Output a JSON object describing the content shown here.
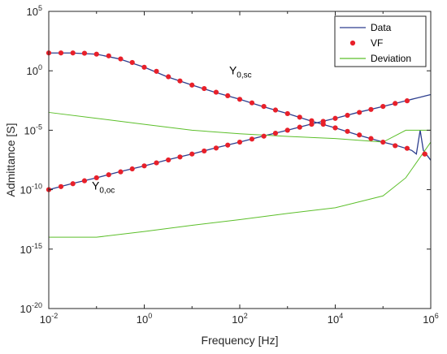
{
  "chart_data": {
    "type": "line",
    "xlabel": "Frequency [Hz]",
    "ylabel": "Admittance [S]",
    "x_scale": "log",
    "y_scale": "log",
    "xlim": [
      0.01,
      1000000
    ],
    "ylim": [
      1e-20,
      100000
    ],
    "grid": false,
    "legend_position": "top-right",
    "x_ticks": [
      {
        "base": "10",
        "exp": "-2"
      },
      {
        "base": "10",
        "exp": "0"
      },
      {
        "base": "10",
        "exp": "2"
      },
      {
        "base": "10",
        "exp": "4"
      },
      {
        "base": "10",
        "exp": "6"
      }
    ],
    "y_ticks": [
      {
        "base": "10",
        "exp": "5"
      },
      {
        "base": "10",
        "exp": "0"
      },
      {
        "base": "10",
        "exp": "-5"
      },
      {
        "base": "10",
        "exp": "-10"
      },
      {
        "base": "10",
        "exp": "-15"
      },
      {
        "base": "10",
        "exp": "-20"
      }
    ],
    "annotations": [
      {
        "main": "Y",
        "sub": "0,sc",
        "x": 60,
        "y": 0.5
      },
      {
        "main": "Y",
        "sub": "0,oc",
        "x": 0.08,
        "y": 1e-10
      }
    ],
    "legend": [
      {
        "label": "Data",
        "marker": "line",
        "color": "#2e3f8f"
      },
      {
        "label": "VF",
        "marker": "dot",
        "color": "#e8202a"
      },
      {
        "label": "Deviation",
        "marker": "line",
        "color": "#5cbf2a"
      }
    ],
    "series": [
      {
        "name": "Y0,sc",
        "role": "data_curve",
        "color": "#2e3f8f",
        "x": [
          0.01,
          0.03,
          0.1,
          0.3,
          1,
          3,
          10,
          30,
          100,
          300,
          1000,
          3000,
          10000,
          30000,
          100000,
          200000,
          300000,
          400000,
          500000,
          600000,
          700000,
          800000,
          1000000
        ],
        "y": [
          31.6,
          31.6,
          25.1,
          10,
          2.0,
          0.316,
          0.0631,
          0.0158,
          0.004,
          0.001,
          0.00025,
          6.31e-05,
          1.58e-05,
          4e-06,
          1e-06,
          5e-07,
          3e-07,
          2e-07,
          1e-07,
          1e-05,
          2e-07,
          1e-07,
          3e-08
        ]
      },
      {
        "name": "Y0,oc",
        "role": "data_curve",
        "color": "#2e3f8f",
        "x": [
          0.01,
          0.03,
          0.1,
          0.3,
          1,
          3,
          10,
          30,
          100,
          300,
          1000,
          3000,
          10000,
          30000,
          100000,
          200000,
          300000,
          400000,
          500000,
          600000,
          700000,
          800000,
          1000000
        ],
        "y": [
          1e-10,
          3.16e-10,
          1e-09,
          3.16e-09,
          1e-08,
          3.16e-08,
          1e-07,
          3.16e-07,
          1e-06,
          3.16e-06,
          1e-05,
          3.16e-05,
          0.0001,
          0.000316,
          0.001,
          0.002,
          0.003,
          0.004,
          0.005,
          0.006,
          0.007,
          0.008,
          0.01
        ]
      },
      {
        "name": "VF",
        "role": "points",
        "color": "#e8202a",
        "x": [
          0.01,
          0.018,
          0.032,
          0.056,
          0.1,
          0.18,
          0.32,
          0.56,
          1,
          1.8,
          3.2,
          5.6,
          10,
          18,
          32,
          56,
          100,
          180,
          320,
          560,
          1000,
          1800,
          3200,
          5600,
          10000,
          18000,
          32000,
          56000,
          100000,
          180000,
          320000,
          750000
        ],
        "y_sc": [
          31.6,
          31.6,
          31.6,
          30,
          25.1,
          18,
          10,
          5,
          2.0,
          0.9,
          0.316,
          0.14,
          0.0631,
          0.032,
          0.0158,
          0.008,
          0.004,
          0.002,
          0.001,
          0.0005,
          0.00025,
          0.000125,
          6.31e-05,
          3.2e-05,
          1.58e-05,
          8e-06,
          4e-06,
          2e-06,
          1e-06,
          5e-07,
          3e-07,
          1e-07
        ],
        "y_oc": [
          1e-10,
          1.8e-10,
          3.16e-10,
          5.6e-10,
          1e-09,
          1.8e-09,
          3.16e-09,
          5.6e-09,
          1e-08,
          1.8e-08,
          3.16e-08,
          5.6e-08,
          1e-07,
          1.8e-07,
          3.16e-07,
          5.6e-07,
          1e-06,
          1.8e-06,
          3.16e-06,
          5.6e-06,
          1e-05,
          1.8e-05,
          3.16e-05,
          5.6e-05,
          0.0001,
          0.00018,
          0.000316,
          0.00056,
          0.001,
          0.0018,
          0.003,
          1e-07
        ]
      },
      {
        "name": "Deviation (sc)",
        "role": "deviation",
        "color": "#5cbf2a",
        "x": [
          0.01,
          0.1,
          1,
          10,
          100,
          1000,
          10000,
          100000,
          300000,
          1000000
        ],
        "y": [
          0.000316,
          0.0001,
          3.16e-05,
          1e-05,
          5e-06,
          3e-06,
          2e-06,
          1e-06,
          1e-05,
          1e-05
        ]
      },
      {
        "name": "Deviation (oc)",
        "role": "deviation",
        "color": "#5cbf2a",
        "x": [
          0.01,
          0.1,
          1,
          10,
          100,
          1000,
          10000,
          100000,
          300000,
          1000000
        ],
        "y": [
          1e-14,
          1e-14,
          3e-14,
          1e-13,
          3e-13,
          1e-12,
          3e-12,
          3e-11,
          1e-09,
          1e-06
        ]
      }
    ]
  }
}
